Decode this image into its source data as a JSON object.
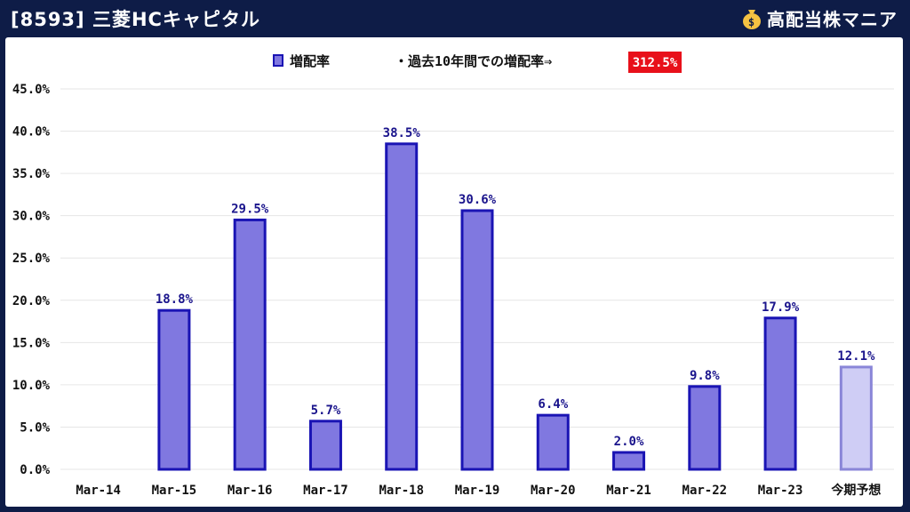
{
  "header": {
    "title": "[8593] 三菱HCキャピタル",
    "brand": "高配当株マニア",
    "brand_icon": "money-bag-icon"
  },
  "colors": {
    "header_bg": "#0e1c47",
    "bar_fill": "#8078e0",
    "bar_stroke": "#1a14b4",
    "forecast_fill": "#cfcdf5",
    "forecast_stroke": "#8a86d8",
    "label_color": "#1a148c",
    "highlight_bg": "#e8101a"
  },
  "chart_data": {
    "type": "bar",
    "categories": [
      "Mar-14",
      "Mar-15",
      "Mar-16",
      "Mar-17",
      "Mar-18",
      "Mar-19",
      "Mar-20",
      "Mar-21",
      "Mar-22",
      "Mar-23",
      "今期予想"
    ],
    "series": [
      {
        "name": "増配率",
        "values": [
          null,
          18.8,
          29.5,
          5.7,
          38.5,
          30.6,
          6.4,
          2.0,
          9.8,
          17.9,
          12.1
        ],
        "labels": [
          "",
          "18.8%",
          "29.5%",
          "5.7%",
          "38.5%",
          "30.6%",
          "6.4%",
          "2.0%",
          "9.8%",
          "17.9%",
          "12.1%"
        ]
      }
    ],
    "forecast_index": 10,
    "ylim": [
      0,
      45
    ],
    "yticks": [
      "0.0%",
      "5.0%",
      "10.0%",
      "15.0%",
      "20.0%",
      "25.0%",
      "30.0%",
      "35.0%",
      "40.0%",
      "45.0%"
    ],
    "grid": true,
    "legend": {
      "position": "top-center",
      "label": "増配率"
    },
    "annotation": {
      "text": "・過去10年間での増配率⇒",
      "value": "312.5%"
    }
  }
}
